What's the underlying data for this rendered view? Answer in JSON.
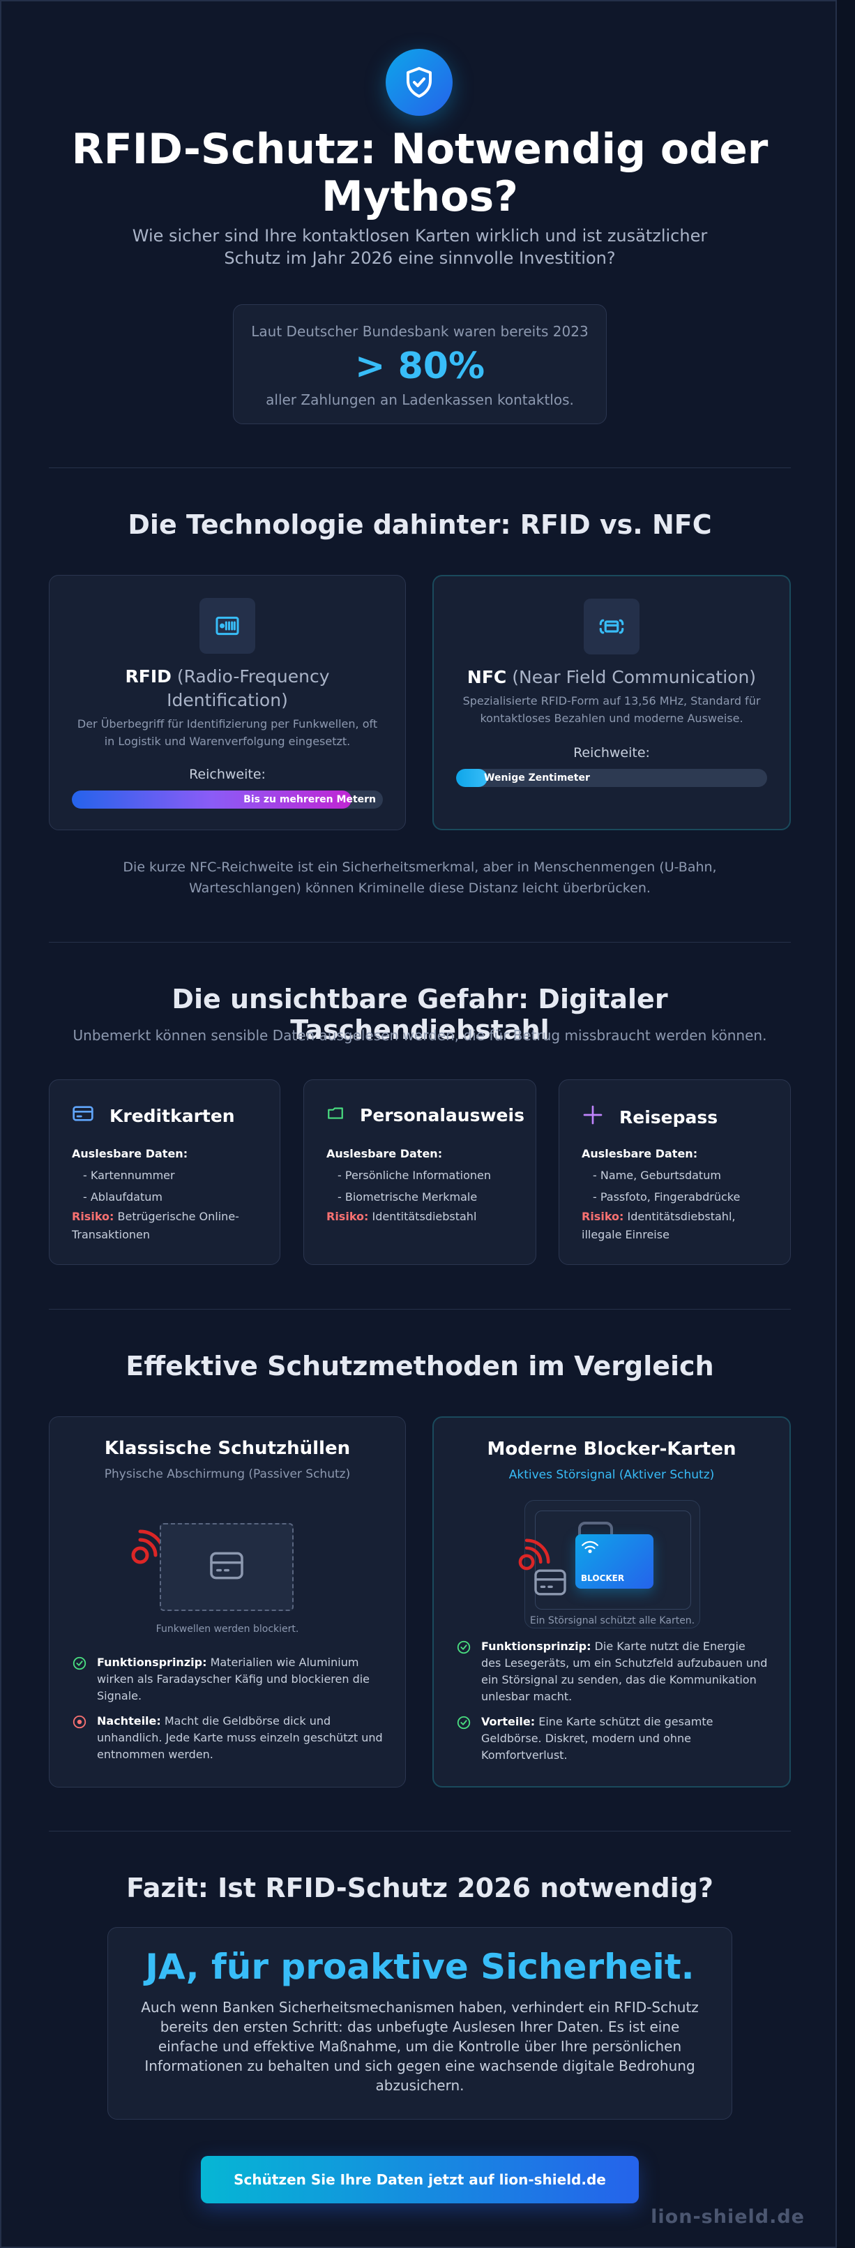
{
  "hero": {
    "title": "RFID-Schutz: Notwendig oder Mythos?",
    "subtitle": "Wie sicher sind Ihre kontaktlosen Karten wirklich und ist zusätzlicher Schutz im Jahr 2026 eine sinnvolle Investition?",
    "icon": "shield-check-icon"
  },
  "stat": {
    "top": "Laut Deutscher Bundesbank waren bereits 2023",
    "value": "> 80%",
    "bottom": "aller Zahlungen an Ladenkassen kontaktlos."
  },
  "tech": {
    "title": "Die Technologie dahinter: RFID vs. NFC",
    "rfid": {
      "name": "RFID",
      "full": "(Radio-Frequency Identification)",
      "desc": "Der Überbegriff für Identifizierung per Funkwellen, oft in Logistik und Warenverfolgung eingesetzt.",
      "range_label": "Reichweite:",
      "range_text": "Bis zu mehreren Metern",
      "range_fill": 0.9,
      "icon": "rfid-tag-icon"
    },
    "nfc": {
      "name": "NFC",
      "full": "(Near Field Communication)",
      "desc": "Spezialisierte RFID-Form auf 13,56 MHz, Standard für kontaktloses Bezahlen und moderne Ausweise.",
      "range_label": "Reichweite:",
      "range_text": "Wenige Zentimeter",
      "range_fill": 0.1,
      "icon": "nfc-payment-icon"
    },
    "note": "Die kurze NFC-Reichweite ist ein Sicherheitsmerkmal, aber in Menschenmengen (U-Bahn, Warteschlangen) können Kriminelle diese Distanz leicht überbrücken."
  },
  "threat": {
    "title": "Die unsichtbare Gefahr: Digitaler Taschendiebstahl",
    "subtitle": "Unbemerkt können sensible Daten ausgelesen werden, die für Betrug missbraucht werden können.",
    "data_label": "Auslesbare Daten:",
    "risk_label": "Risiko:",
    "cards": [
      {
        "title": "Kreditkarten",
        "icon": "credit-card-icon",
        "items": [
          "- Kartennummer",
          "- Ablaufdatum"
        ],
        "risk": "Betrügerische Online-Transaktionen",
        "color": "#60a5fa"
      },
      {
        "title": "Personalausweis",
        "icon": "id-card-icon",
        "items": [
          "- Persönliche Informationen",
          "- Biometrische Merkmale"
        ],
        "risk": "Identitätsdiebstahl",
        "color": "#4ade80"
      },
      {
        "title": "Reisepass",
        "icon": "passport-icon",
        "items": [
          "- Name, Geburtsdatum",
          "- Passfoto, Fingerabdrücke"
        ],
        "risk": "Identitätsdiebstahl, illegale Einreise",
        "color": "#c084fc"
      }
    ]
  },
  "protection": {
    "title": "Effektive Schutzmethoden im Vergleich",
    "classic": {
      "title": "Klassische Schutzhüllen",
      "subtitle": "Physische Abschirmung (Passiver Schutz)",
      "caption": "Funkwellen werden blockiert.",
      "b1_label": "Funktionsprinzip:",
      "b1_text": "Materialien wie Aluminium wirken als Faradayscher Käfig und blockieren die Signale.",
      "b2_label": "Nachteile:",
      "b2_text": "Macht die Geldbörse dick und unhandlich. Jede Karte muss einzeln geschützt und entnommen werden."
    },
    "modern": {
      "title": "Moderne Blocker-Karten",
      "subtitle": "Aktives Störsignal (Aktiver Schutz)",
      "blocker_label": "BLOCKER",
      "caption": "Ein Störsignal schützt alle Karten.",
      "b1_label": "Funktionsprinzip:",
      "b1_text": "Die Karte nutzt die Energie des Lesegeräts, um ein Schutzfeld aufzubauen und ein Störsignal zu senden, das die Kommunikation unlesbar macht.",
      "b2_label": "Vorteile:",
      "b2_text": "Eine Karte schützt die gesamte Geldbörse. Diskret, modern und ohne Komfortverlust."
    }
  },
  "fazit": {
    "title": "Fazit: Ist RFID-Schutz 2026 notwendig?",
    "headline": "JA, für proaktive Sicherheit.",
    "text": "Auch wenn Banken Sicherheitsmechanismen haben, verhindert ein RFID-Schutz bereits den ersten Schritt: das unbefugte Auslesen Ihrer Daten. Es ist eine einfache und effektive Maßnahme, um die Kontrolle über Ihre persönlichen Informationen zu behalten und sich gegen eine wachsende digitale Bedrohung abzusichern."
  },
  "cta": {
    "label": "Schützen Sie Ihre Daten jetzt auf lion-shield.de"
  },
  "brand": "lion-shield.de",
  "colors": {
    "accent": "#38bdf8",
    "danger": "#ef4444",
    "success": "#4ade80",
    "background": "#0f172a",
    "card": "#172034"
  }
}
